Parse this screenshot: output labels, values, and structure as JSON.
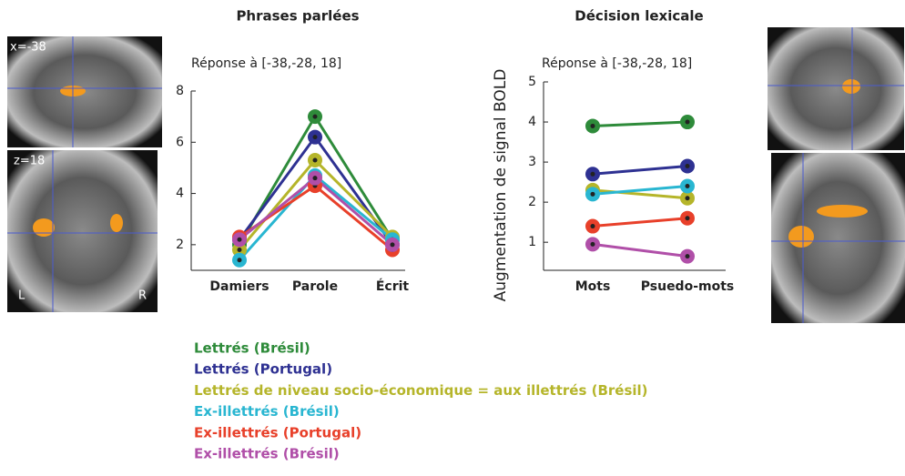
{
  "chart_data": [
    {
      "type": "line",
      "title": "Phrases parlées",
      "subtitle": "Réponse à [-38,-28, 18]",
      "categories": [
        "Damiers",
        "Parole",
        "Écrit"
      ],
      "ylim": [
        1,
        8
      ],
      "yticks": [
        2,
        4,
        6,
        8
      ],
      "series": [
        {
          "name": "Lettrés (Brésil)",
          "color": "#2e8b3a",
          "values": [
            2.0,
            7.0,
            2.2
          ]
        },
        {
          "name": "Lettrés (Portugal)",
          "color": "#2e3192",
          "values": [
            2.2,
            6.2,
            2.0
          ]
        },
        {
          "name": "Lettrés de niveau socio-économique = aux illettrés (Brésil)",
          "color": "#b5b52a",
          "values": [
            1.8,
            5.3,
            2.3
          ]
        },
        {
          "name": "Ex-illettrés (Brésil)",
          "color": "#29b6d1",
          "values": [
            1.4,
            4.7,
            2.2
          ]
        },
        {
          "name": "Ex-illettrés (Portugal)",
          "color": "#e8402a",
          "values": [
            2.3,
            4.3,
            1.8
          ]
        },
        {
          "name": "Ex-illettrés (Brésil)",
          "color": "#b04fa8",
          "values": [
            2.2,
            4.6,
            2.0
          ]
        }
      ]
    },
    {
      "type": "line",
      "title": "Décision lexicale",
      "subtitle": "Réponse à [-38,-28, 18]",
      "y_label": "Augmentation de signal BOLD",
      "categories": [
        "Mots",
        "Psuedo-mots"
      ],
      "ylim": [
        0.3,
        5
      ],
      "yticks": [
        1,
        2,
        3,
        4,
        5
      ],
      "series": [
        {
          "name": "Lettrés (Brésil)",
          "color": "#2e8b3a",
          "values": [
            3.9,
            4.0
          ]
        },
        {
          "name": "Lettrés (Portugal)",
          "color": "#2e3192",
          "values": [
            2.7,
            2.9
          ]
        },
        {
          "name": "Lettrés de niveau socio-économique = aux illettrés (Brésil)",
          "color": "#b5b52a",
          "values": [
            2.3,
            2.1
          ]
        },
        {
          "name": "Ex-illettrés (Brésil)",
          "color": "#29b6d1",
          "values": [
            2.2,
            2.4
          ]
        },
        {
          "name": "Ex-illettrés (Portugal)",
          "color": "#e8402a",
          "values": [
            1.4,
            1.6
          ]
        },
        {
          "name": "Ex-illettrés (Brésil)",
          "color": "#b04fa8",
          "values": [
            0.95,
            0.65
          ]
        }
      ]
    }
  ],
  "image_labels": [
    "x=-38",
    "z=18",
    "L",
    "R"
  ]
}
